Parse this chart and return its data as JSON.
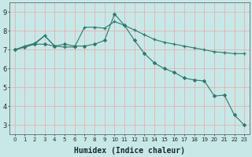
{
  "title": "",
  "xlabel": "Humidex (Indice chaleur)",
  "bg_color": "#c8e8e8",
  "grid_color": "#e8b0b0",
  "line_color": "#2a7a6a",
  "xlim": [
    -0.5,
    23.5
  ],
  "ylim": [
    2.5,
    9.5
  ],
  "yticks": [
    3,
    4,
    5,
    6,
    7,
    8,
    9
  ],
  "xticks": [
    0,
    1,
    2,
    3,
    4,
    5,
    6,
    7,
    8,
    9,
    10,
    11,
    12,
    13,
    14,
    15,
    16,
    17,
    18,
    19,
    20,
    21,
    22,
    23
  ],
  "series1_x": [
    0,
    1,
    2,
    3,
    4,
    5,
    6,
    7,
    8,
    9,
    10,
    11,
    12,
    13,
    14,
    15,
    16,
    17,
    18,
    19,
    20,
    21,
    22,
    23
  ],
  "series1_y": [
    7.0,
    7.15,
    7.3,
    7.75,
    7.2,
    7.15,
    7.15,
    8.2,
    8.2,
    8.15,
    8.5,
    8.3,
    8.05,
    7.8,
    7.55,
    7.4,
    7.3,
    7.2,
    7.1,
    7.0,
    6.9,
    6.85,
    6.8,
    6.8
  ],
  "series2_x": [
    0,
    1,
    2,
    3,
    4,
    5,
    6,
    7,
    8,
    9,
    10,
    11,
    12,
    13,
    14,
    15,
    16,
    17,
    18,
    19,
    20,
    21,
    22,
    23
  ],
  "series2_y": [
    7.0,
    7.15,
    7.3,
    7.3,
    7.2,
    7.3,
    7.2,
    7.2,
    7.3,
    7.5,
    8.9,
    8.3,
    7.5,
    6.8,
    6.3,
    6.0,
    5.8,
    5.5,
    5.4,
    5.35,
    4.55,
    4.6,
    3.55,
    3.0
  ],
  "series3_x": [
    0,
    1,
    2,
    3,
    4
  ],
  "series3_y": [
    7.0,
    7.2,
    7.35,
    7.75,
    7.2
  ],
  "xlabel_fontsize": 7,
  "tick_fontsize": 5,
  "ytick_fontsize": 6
}
